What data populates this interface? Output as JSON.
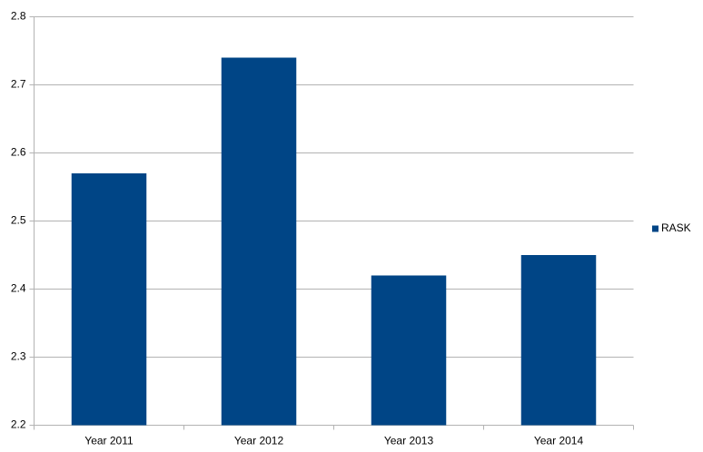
{
  "chart_data": {
    "type": "bar",
    "categories": [
      "Year 2011",
      "Year 2012",
      "Year 2013",
      "Year 2014"
    ],
    "series": [
      {
        "name": "RASK",
        "color": "#004586",
        "values": [
          2.57,
          2.74,
          2.42,
          2.45
        ]
      }
    ],
    "ylim": [
      2.2,
      2.8
    ],
    "yticks": [
      2.2,
      2.3,
      2.4,
      2.5,
      2.6,
      2.7,
      2.8
    ],
    "grid": true,
    "legend": "right"
  }
}
